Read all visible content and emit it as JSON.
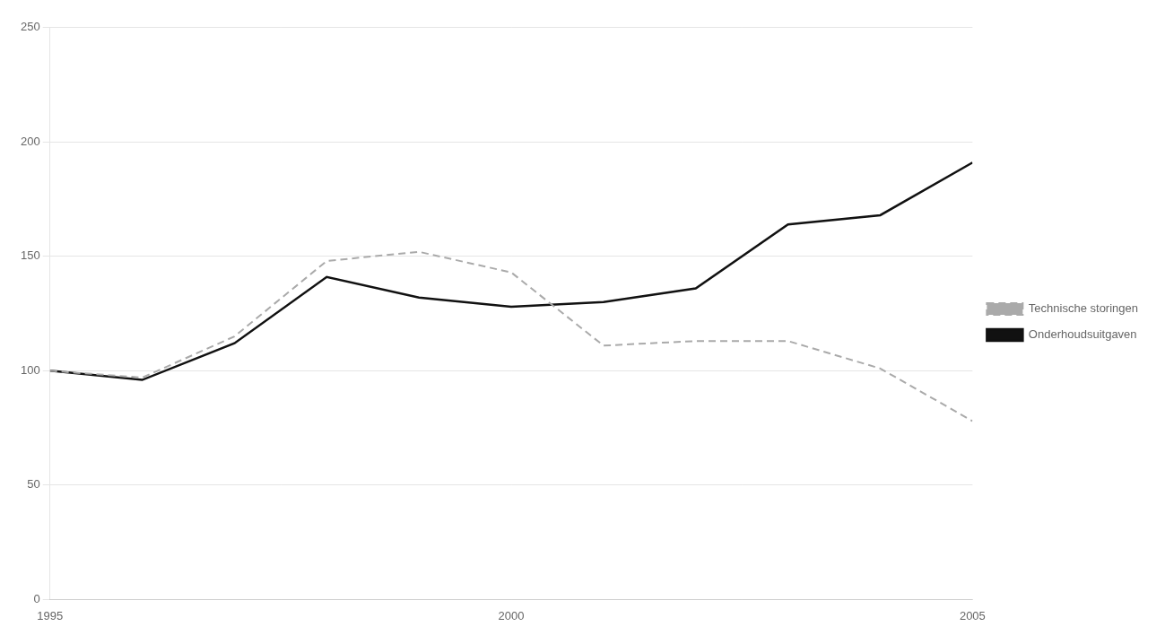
{
  "chart_data": {
    "type": "line",
    "x": [
      1995,
      1996,
      1997,
      1998,
      1999,
      2000,
      2001,
      2002,
      2003,
      2004,
      2005
    ],
    "series": [
      {
        "name": "Technische storingen",
        "color": "#aaaaaa",
        "line_style": "dashed",
        "values": [
          100,
          97,
          115,
          148,
          152,
          143,
          111,
          113,
          113,
          101,
          78
        ]
      },
      {
        "name": "Onderhoudsuitgaven",
        "color": "#111111",
        "line_style": "solid",
        "values": [
          100,
          96,
          112,
          141,
          132,
          128,
          130,
          136,
          164,
          168,
          191
        ]
      }
    ],
    "xlim": [
      1995,
      2005
    ],
    "xticks": [
      1995,
      2000,
      2005
    ],
    "ylim": [
      0,
      250
    ],
    "yticks": [
      0,
      50,
      100,
      150,
      200,
      250
    ],
    "grid": "y",
    "legend": "right"
  }
}
